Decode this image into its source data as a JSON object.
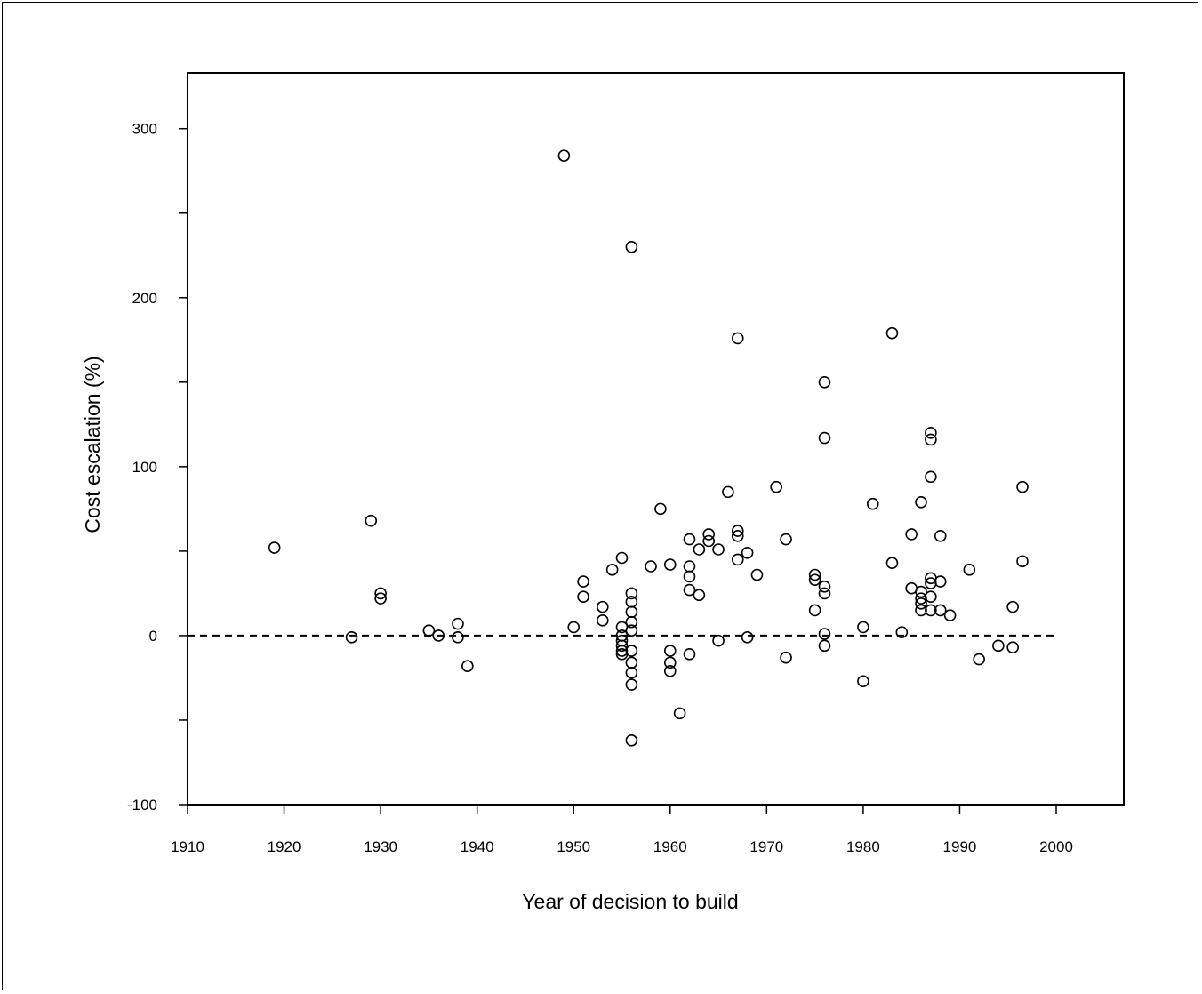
{
  "chart_data": {
    "type": "scatter",
    "title": "",
    "xlabel": "Year of decision to build",
    "ylabel": "Cost escalation (%)",
    "xlim": [
      1910,
      2007
    ],
    "ylim": [
      -100,
      333
    ],
    "xticks": [
      1910,
      1920,
      1930,
      1940,
      1950,
      1960,
      1970,
      1980,
      1990,
      2000
    ],
    "yticks": [
      -100,
      -50,
      0,
      50,
      100,
      150,
      200,
      250,
      300
    ],
    "ytick_labels": [
      "-100",
      "",
      "0",
      "",
      "100",
      "",
      "200",
      "",
      "300"
    ],
    "xtick_labels": [
      "1910",
      "1920",
      "1930",
      "1940",
      "1950",
      "1960",
      "1970",
      "1980",
      "1990",
      "2000"
    ],
    "reference_line": {
      "y": 0,
      "style": "dashed",
      "x_range": [
        1910,
        2000
      ]
    },
    "grid": false,
    "legend": "none",
    "marker": "open-circle",
    "colors": {
      "marker": "#000000",
      "axes": "#000000",
      "background": "#ffffff"
    },
    "points": [
      [
        1919,
        52
      ],
      [
        1927,
        -1
      ],
      [
        1929,
        68
      ],
      [
        1930,
        25
      ],
      [
        1930,
        22
      ],
      [
        1935,
        3
      ],
      [
        1936,
        0
      ],
      [
        1938,
        7
      ],
      [
        1938,
        -1
      ],
      [
        1939,
        -18
      ],
      [
        1949,
        284
      ],
      [
        1950,
        5
      ],
      [
        1951,
        32
      ],
      [
        1951,
        23
      ],
      [
        1953,
        17
      ],
      [
        1953,
        9
      ],
      [
        1954,
        39
      ],
      [
        1955,
        46
      ],
      [
        1955,
        5
      ],
      [
        1955,
        0
      ],
      [
        1955,
        -3
      ],
      [
        1955,
        -6
      ],
      [
        1955,
        -9
      ],
      [
        1955,
        -11
      ],
      [
        1956,
        230
      ],
      [
        1956,
        25
      ],
      [
        1956,
        20
      ],
      [
        1956,
        14
      ],
      [
        1956,
        8
      ],
      [
        1956,
        3
      ],
      [
        1956,
        -9
      ],
      [
        1956,
        -16
      ],
      [
        1956,
        -22
      ],
      [
        1956,
        -29
      ],
      [
        1956,
        -62
      ],
      [
        1958,
        41
      ],
      [
        1959,
        75
      ],
      [
        1960,
        42
      ],
      [
        1960,
        -9
      ],
      [
        1960,
        -16
      ],
      [
        1960,
        -21
      ],
      [
        1961,
        -46
      ],
      [
        1962,
        57
      ],
      [
        1962,
        41
      ],
      [
        1962,
        35
      ],
      [
        1962,
        27
      ],
      [
        1962,
        -11
      ],
      [
        1963,
        51
      ],
      [
        1963,
        24
      ],
      [
        1964,
        60
      ],
      [
        1964,
        56
      ],
      [
        1965,
        51
      ],
      [
        1965,
        -3
      ],
      [
        1966,
        85
      ],
      [
        1967,
        176
      ],
      [
        1967,
        62
      ],
      [
        1967,
        59
      ],
      [
        1967,
        45
      ],
      [
        1968,
        49
      ],
      [
        1968,
        -1
      ],
      [
        1969,
        36
      ],
      [
        1971,
        88
      ],
      [
        1972,
        57
      ],
      [
        1972,
        -13
      ],
      [
        1975,
        36
      ],
      [
        1975,
        33
      ],
      [
        1975,
        15
      ],
      [
        1976,
        150
      ],
      [
        1976,
        117
      ],
      [
        1976,
        29
      ],
      [
        1976,
        25
      ],
      [
        1976,
        1
      ],
      [
        1976,
        -6
      ],
      [
        1980,
        5
      ],
      [
        1980,
        -27
      ],
      [
        1981,
        78
      ],
      [
        1983,
        179
      ],
      [
        1983,
        43
      ],
      [
        1984,
        2
      ],
      [
        1985,
        60
      ],
      [
        1985,
        28
      ],
      [
        1986,
        79
      ],
      [
        1986,
        26
      ],
      [
        1986,
        22
      ],
      [
        1986,
        19
      ],
      [
        1986,
        15
      ],
      [
        1987,
        120
      ],
      [
        1987,
        116
      ],
      [
        1987,
        94
      ],
      [
        1987,
        34
      ],
      [
        1987,
        31
      ],
      [
        1987,
        23
      ],
      [
        1987,
        15
      ],
      [
        1988,
        59
      ],
      [
        1988,
        32
      ],
      [
        1988,
        15
      ],
      [
        1989,
        12
      ],
      [
        1991,
        39
      ],
      [
        1992,
        -14
      ],
      [
        1994,
        -6
      ],
      [
        1995.5,
        17
      ],
      [
        1995.5,
        -7
      ],
      [
        1996.5,
        88
      ],
      [
        1996.5,
        44
      ]
    ]
  }
}
